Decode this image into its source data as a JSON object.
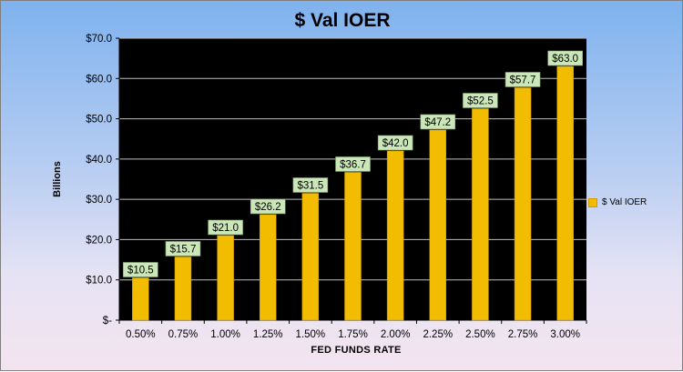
{
  "chart_data": {
    "type": "bar",
    "title": "$ Val IOER",
    "xlabel": "FED FUNDS RATE",
    "ylabel": "Billions",
    "categories": [
      "0.50%",
      "0.75%",
      "1.00%",
      "1.25%",
      "1.50%",
      "1.75%",
      "2.00%",
      "2.25%",
      "2.50%",
      "2.75%",
      "3.00%"
    ],
    "series": [
      {
        "name": "$ Val IOER",
        "values": [
          10.5,
          15.7,
          21.0,
          26.2,
          31.5,
          36.7,
          42.0,
          47.2,
          52.5,
          57.7,
          63.0
        ],
        "data_labels": [
          "$10.5",
          "$15.7",
          "$21.0",
          "$26.2",
          "$31.5",
          "$36.7",
          "$42.0",
          "$47.2",
          "$52.5",
          "$57.7",
          "$63.0"
        ]
      }
    ],
    "ylim": [
      0,
      70
    ],
    "yticks": [
      0,
      10,
      20,
      30,
      40,
      50,
      60,
      70
    ],
    "ytick_labels": [
      "$-",
      "$10.0",
      "$20.0",
      "$30.0",
      "$40.0",
      "$50.0",
      "$60.0",
      "$70.0"
    ],
    "grid": true,
    "legend_position": "right",
    "colors": {
      "bar": "#f2bd00",
      "plot_background": "#000000",
      "gridline": "#bfbfbf",
      "data_label_background": "#cbe6b8"
    }
  }
}
